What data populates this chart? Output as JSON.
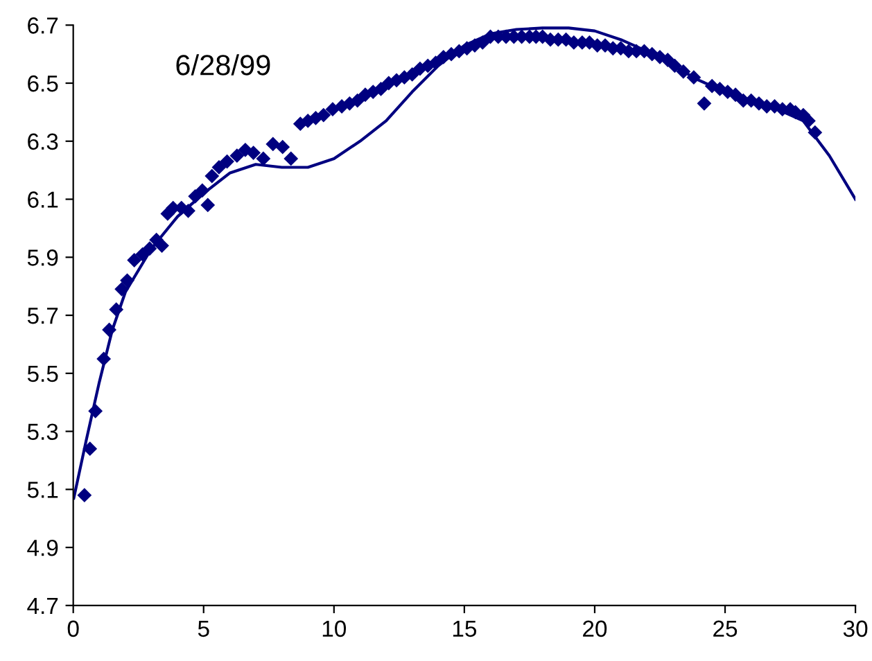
{
  "chart_data": {
    "type": "scatter",
    "title": "6/28/99",
    "xlim": [
      0,
      30
    ],
    "xticks": [
      0,
      5,
      10,
      15,
      20,
      25,
      30
    ],
    "ylim": [
      4.7,
      6.7
    ],
    "yticks": [
      4.7,
      4.9,
      5.1,
      5.3,
      5.5,
      5.7,
      5.9,
      6.1,
      6.3,
      6.5,
      6.7
    ],
    "grid": false,
    "legend": false,
    "series": [
      {
        "marker": "diamond",
        "color": "#000080",
        "x": [
          0.43,
          0.64,
          0.85,
          1.17,
          1.38,
          1.65,
          1.86,
          2.07,
          2.34,
          2.66,
          2.93,
          3.19,
          3.4,
          3.62,
          3.83,
          4.15,
          4.41,
          4.68,
          4.95,
          5.16,
          5.32,
          5.59,
          5.9,
          6.28,
          6.6,
          6.91,
          7.29,
          7.66,
          8.03,
          8.35,
          8.71,
          9.0,
          9.3,
          9.6,
          9.95,
          10.3,
          10.6,
          10.9,
          11.2,
          11.5,
          11.8,
          12.1,
          12.4,
          12.7,
          13.0,
          13.3,
          13.6,
          13.9,
          14.2,
          14.5,
          14.8,
          15.1,
          15.4,
          15.7,
          16.0,
          16.3,
          16.6,
          16.9,
          17.2,
          17.5,
          17.75,
          18.0,
          18.3,
          18.6,
          18.9,
          19.2,
          19.52,
          19.8,
          20.1,
          20.4,
          20.7,
          21.0,
          21.3,
          21.6,
          21.9,
          22.2,
          22.5,
          22.8,
          23.07,
          23.4,
          23.8,
          24.2,
          24.5,
          24.8,
          25.1,
          25.4,
          25.7,
          26.0,
          26.3,
          26.6,
          26.9,
          27.2,
          27.5,
          27.7,
          28.0,
          28.2,
          28.45
        ],
        "values": [
          5.08,
          5.24,
          5.37,
          5.55,
          5.65,
          5.72,
          5.79,
          5.82,
          5.89,
          5.91,
          5.93,
          5.96,
          5.94,
          6.05,
          6.07,
          6.07,
          6.06,
          6.11,
          6.13,
          6.08,
          6.18,
          6.21,
          6.23,
          6.25,
          6.27,
          6.26,
          6.24,
          6.29,
          6.28,
          6.24,
          6.36,
          6.37,
          6.38,
          6.39,
          6.41,
          6.42,
          6.43,
          6.44,
          6.46,
          6.47,
          6.48,
          6.5,
          6.51,
          6.52,
          6.53,
          6.55,
          6.56,
          6.57,
          6.59,
          6.6,
          6.61,
          6.62,
          6.63,
          6.64,
          6.66,
          6.66,
          6.66,
          6.66,
          6.66,
          6.66,
          6.66,
          6.66,
          6.65,
          6.65,
          6.65,
          6.64,
          6.64,
          6.64,
          6.63,
          6.63,
          6.62,
          6.62,
          6.61,
          6.61,
          6.61,
          6.6,
          6.59,
          6.58,
          6.56,
          6.54,
          6.52,
          6.43,
          6.49,
          6.48,
          6.47,
          6.46,
          6.44,
          6.44,
          6.43,
          6.42,
          6.42,
          6.41,
          6.41,
          6.4,
          6.39,
          6.37,
          6.33
        ]
      },
      {
        "type": "line",
        "marker": "none",
        "line_style": "solid",
        "color": "#000080",
        "x": [
          0.02,
          0.5,
          1,
          1.5,
          2,
          3,
          4,
          5,
          6,
          7,
          8,
          9,
          10,
          11,
          12,
          13,
          14,
          15,
          16,
          17,
          18,
          19,
          20,
          21,
          22,
          23,
          24,
          25,
          26,
          27,
          28,
          29,
          30
        ],
        "values": [
          5.07,
          5.27,
          5.47,
          5.65,
          5.78,
          5.93,
          6.04,
          6.12,
          6.19,
          6.22,
          6.21,
          6.21,
          6.24,
          6.3,
          6.37,
          6.47,
          6.56,
          6.63,
          6.67,
          6.685,
          6.69,
          6.69,
          6.68,
          6.65,
          6.61,
          6.56,
          6.51,
          6.47,
          6.44,
          6.41,
          6.37,
          6.25,
          6.1
        ]
      }
    ]
  }
}
